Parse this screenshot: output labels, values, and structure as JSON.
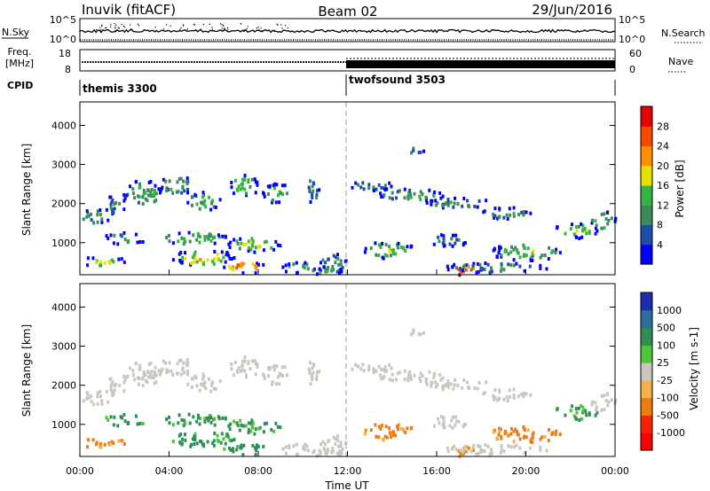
{
  "header": {
    "station": "Inuvik (fitACF)",
    "beam": "Beam 02",
    "date": "29/Jun/2016"
  },
  "top_panels": {
    "nsky": {
      "left_label": "N.Sky",
      "right_label": "N.Search",
      "tick_top": "10^5",
      "tick_bottom": "10^0",
      "right_tick_top": "10^5",
      "right_tick_bottom": "10^0"
    },
    "freq": {
      "left_label_1": "Freq.",
      "left_label_2": "[MHz]",
      "left_tick_top": "18",
      "left_tick_bottom": "8",
      "right_label": "Nave",
      "right_tick_top": "60",
      "right_tick_bottom": "0"
    },
    "cpid": {
      "label": "CPID",
      "modes": [
        {
          "name": "themis 3300",
          "start_hour": 0
        },
        {
          "name": "twofsound 3503",
          "start_hour": 12
        }
      ]
    }
  },
  "chart_data": [
    {
      "type": "heatmap",
      "name": "power",
      "ylabel": "Slant Range [km]",
      "ylim": [
        180,
        4600
      ],
      "yticks": [
        "1000",
        "2000",
        "3000",
        "4000"
      ],
      "xlim": [
        0,
        24
      ],
      "colorbar": {
        "label": "Power [dB]",
        "ticks": [
          "4",
          "8",
          "12",
          "16",
          "20",
          "24",
          "28"
        ],
        "colors": [
          "#0000ff",
          "#1d4ea8",
          "#3c8c5a",
          "#34b442",
          "#e8e000",
          "#ff9000",
          "#f54a00",
          "#e60000"
        ]
      }
    },
    {
      "type": "heatmap",
      "name": "velocity",
      "ylabel": "Slant Range [km]",
      "ylim": [
        180,
        4600
      ],
      "yticks": [
        "1000",
        "2000",
        "3000",
        "4000"
      ],
      "xlim": [
        0,
        24
      ],
      "xlabel": "Time UT",
      "xticks": [
        "00:00",
        "04:00",
        "08:00",
        "12:00",
        "16:00",
        "20:00",
        "00:00"
      ],
      "colorbar": {
        "label": "Velocity [m s-1]",
        "ticks": [
          "1000",
          "500",
          "100",
          "25",
          "-25",
          "-100",
          "-500",
          "-1000"
        ],
        "colors": [
          "#1a2eb0",
          "#2d6ea0",
          "#2e8f55",
          "#4cc63c",
          "#c8c8c0",
          "#f5b14a",
          "#f07c10",
          "#ff2000",
          "#ff0000"
        ]
      }
    }
  ]
}
